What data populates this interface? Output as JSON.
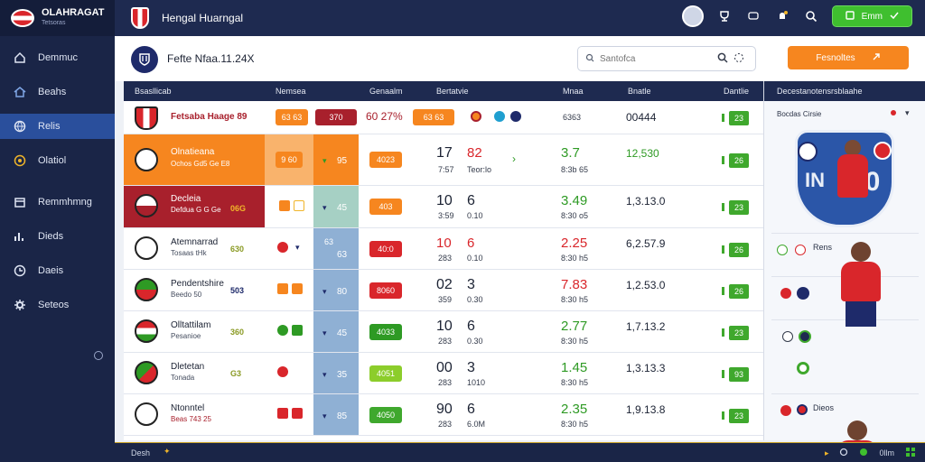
{
  "app": {
    "brand_name": "OLAHRAGAT",
    "brand_sub": "Tetsoras",
    "top_title": "Hengal Huarngal",
    "wallet_label": "Emm"
  },
  "sidebar": {
    "items": [
      {
        "label": "Demmuc",
        "icon": "home-icon"
      },
      {
        "label": "Beahs",
        "icon": "house-icon"
      },
      {
        "label": "Relis",
        "icon": "globe-icon",
        "active": true
      },
      {
        "label": "Olatiol",
        "icon": "coin-icon"
      },
      {
        "label": "Remmhmng",
        "icon": "calendar-icon"
      },
      {
        "label": "Dieds",
        "icon": "chart-icon"
      },
      {
        "label": "Daeis",
        "icon": "clock-icon"
      },
      {
        "label": "Seteos",
        "icon": "gear-icon"
      }
    ]
  },
  "header": {
    "title": "Fefte Nfaa.11.24X",
    "search_placeholder": "Santofca",
    "cta_label": "Fesnoltes"
  },
  "table": {
    "columns": [
      "Bsasllicab",
      "Nemsea",
      "Genaalm",
      "Bertatvie",
      "Mnaa",
      "Bnatle",
      "Dantlie"
    ],
    "rows": [
      {
        "team": "Fetsaba Haage 89",
        "sub": "",
        "num": "",
        "p1": "63 63",
        "p2": "370",
        "p3": "60 27%",
        "p4": "63 63",
        "col5": "",
        "col5b": "",
        "m1": "",
        "m2": "",
        "val": "6363",
        "total": "00444",
        "score": "23"
      },
      {
        "team": "Olnatieana",
        "sub": "Ochos Gd5 Ge E8",
        "num": "",
        "p1": "9 60",
        "p2": "",
        "p3": "",
        "p4": "4023",
        "col5": "",
        "col5b": "95",
        "m1": "17",
        "m2": "82",
        "m1s": "7:57",
        "m2s": "Teor:lo",
        "val": "3.7",
        "vals": "8:3b 65",
        "total": "12,530",
        "score": "26"
      },
      {
        "team": "Decleia",
        "sub": "Defdua G G Ge",
        "num": "06G",
        "p1": "",
        "p2": "",
        "p3": "",
        "p4": "403",
        "col5": "",
        "col5b": "45",
        "m1": "10",
        "m2": "6",
        "m1s": "3:59",
        "m2s": "0.10",
        "val": "3.49",
        "vals": "8:30 o5",
        "total": "1,3.13.0",
        "score": "23"
      },
      {
        "team": "Atemnarrad",
        "sub": "Tosaas tHk",
        "num": "630",
        "p1": "",
        "p2": "",
        "p3": "",
        "p4": "40:0",
        "col5": "63",
        "col5b": "63",
        "m1": "10",
        "m2": "6",
        "m1s": "283",
        "m2s": "0.10",
        "val": "2.25",
        "vals": "8:30 h5",
        "total": "6,2.57.9",
        "score": "26"
      },
      {
        "team": "Pendentshire",
        "sub": "Beedo 50",
        "num": "503",
        "p1": "",
        "p2": "",
        "p3": "",
        "p4": "8060",
        "col5": "",
        "col5b": "80",
        "m1": "02",
        "m2": "3",
        "m1s": "359",
        "m2s": "0.30",
        "val": "7.83",
        "vals": "8:30 h5",
        "total": "1,2.53.0",
        "score": "26"
      },
      {
        "team": "Olltattilam",
        "sub": "Pesanioe",
        "num": "360",
        "p1": "",
        "p2": "",
        "p3": "",
        "p4": "4033",
        "col5": "",
        "col5b": "45",
        "m1": "10",
        "m2": "6",
        "m1s": "283",
        "m2s": "0.30",
        "val": "2.77",
        "vals": "8:30 h5",
        "total": "1,7.13.2",
        "score": "23"
      },
      {
        "team": "Dletetan",
        "sub": "Tonada",
        "num": "G3",
        "p1": "",
        "p2": "",
        "p3": "",
        "p4": "4051",
        "col5": "",
        "col5b": "35",
        "m1": "00",
        "m2": "3",
        "m1s": "283",
        "m2s": "1010",
        "val": "1.45",
        "vals": "8:30 h5",
        "total": "1,3.13.3",
        "score": "93"
      },
      {
        "team": "Ntonntel",
        "sub": "Beas 743 25",
        "num": "",
        "p1": "",
        "p2": "",
        "p3": "",
        "p4": "4050",
        "col5": "",
        "col5b": "85",
        "m1": "90",
        "m2": "6",
        "m1s": "283",
        "m2s": "6.0M",
        "val": "2.35",
        "vals": "8:30 h5",
        "total": "1,9.13.8",
        "score": "23"
      }
    ]
  },
  "panel": {
    "title": "Decestanotensrsblaahe",
    "sub": "Bocdas Cirsie",
    "card_number": "20",
    "card_number_left": "IN",
    "rows": [
      {
        "label": "Rens"
      },
      {
        "label": ""
      },
      {
        "label": ""
      },
      {
        "label": "Dieos"
      }
    ]
  },
  "footer": {
    "left": "Desh",
    "right": "0llm"
  },
  "colors": {
    "accent_orange": "#f6861f",
    "accent_red": "#d9262b",
    "accent_green": "#3fa82d",
    "navy": "#1e2a50"
  }
}
